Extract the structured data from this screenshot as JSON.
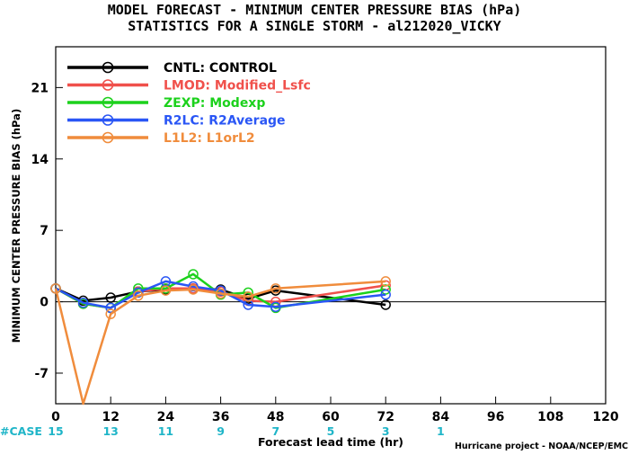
{
  "title": {
    "line1": "MODEL FORECAST - MINIMUM CENTER PRESSURE BIAS (hPa)",
    "line2": "STATISTICS FOR A SINGLE STORM - al212020_VICKY"
  },
  "credit": "Hurricane project - NOAA/NCEP/EMC",
  "case_row": {
    "label": "#CASE",
    "counts": [
      {
        "x": 0,
        "label": "15"
      },
      {
        "x": 12,
        "label": "13"
      },
      {
        "x": 24,
        "label": "11"
      },
      {
        "x": 36,
        "label": "9"
      },
      {
        "x": 48,
        "label": "7"
      },
      {
        "x": 60,
        "label": "5"
      },
      {
        "x": 72,
        "label": "3"
      },
      {
        "x": 84,
        "label": "1"
      }
    ]
  },
  "colors": {
    "axis": "#000000",
    "zero_line": "#000000",
    "case_text": "#1fb5c8"
  },
  "chart_data": {
    "type": "line",
    "xlabel": "Forecast lead time (hr)",
    "ylabel": "MINIMUM CENTER PRESSURE BIAS (hPa)",
    "xlim": [
      0,
      120
    ],
    "ylim": [
      -10,
      25
    ],
    "xticks": [
      0,
      12,
      24,
      36,
      48,
      60,
      72,
      84,
      96,
      108,
      120
    ],
    "xtick_labels": [
      "0",
      "12",
      "24",
      "36",
      "48",
      "60",
      "72",
      "84",
      "96",
      "108",
      "120"
    ],
    "yticks": [
      -7,
      0,
      7,
      14,
      21
    ],
    "ytick_labels": [
      "-7",
      "0",
      "7",
      "14",
      "21"
    ],
    "grid": false,
    "zero_line": true,
    "legend_position": "top-left",
    "series": [
      {
        "name": "CNTL: CONTROL",
        "color": "#000000",
        "x": [
          0,
          6,
          12,
          18,
          24,
          30,
          36,
          42,
          48,
          72
        ],
        "y": [
          1.3,
          0.1,
          0.4,
          1.0,
          1.2,
          1.3,
          1.2,
          0.3,
          1.1,
          -0.3
        ]
      },
      {
        "name": "LMOD: Modified_Lsfc",
        "color": "#f0504b",
        "x": [
          0,
          6,
          12,
          18,
          24,
          30,
          36,
          42,
          48,
          72
        ],
        "y": [
          1.3,
          -0.2,
          -0.6,
          1.0,
          1.3,
          1.3,
          1.0,
          0.1,
          0.0,
          1.6
        ]
      },
      {
        "name": "ZEXP: Modexp",
        "color": "#1cd11c",
        "x": [
          0,
          6,
          12,
          18,
          24,
          30,
          36,
          42,
          48,
          72
        ],
        "y": [
          1.3,
          -0.2,
          -0.6,
          1.3,
          1.3,
          2.7,
          0.7,
          0.9,
          -0.6,
          1.2
        ]
      },
      {
        "name": "R2LC: R2Average",
        "color": "#2a56f5",
        "x": [
          0,
          6,
          12,
          18,
          24,
          30,
          36,
          42,
          48,
          72
        ],
        "y": [
          1.3,
          -0.1,
          -0.6,
          0.9,
          2.0,
          1.5,
          1.1,
          -0.3,
          -0.5,
          0.7
        ]
      },
      {
        "name": "L1L2: L1orL2",
        "color": "#f08c3c",
        "x": [
          0,
          6,
          12,
          18,
          24,
          30,
          36,
          42,
          48,
          72
        ],
        "y": [
          1.3,
          -10.0,
          -1.2,
          0.6,
          1.1,
          1.2,
          0.8,
          0.5,
          1.3,
          2.0
        ]
      }
    ]
  }
}
